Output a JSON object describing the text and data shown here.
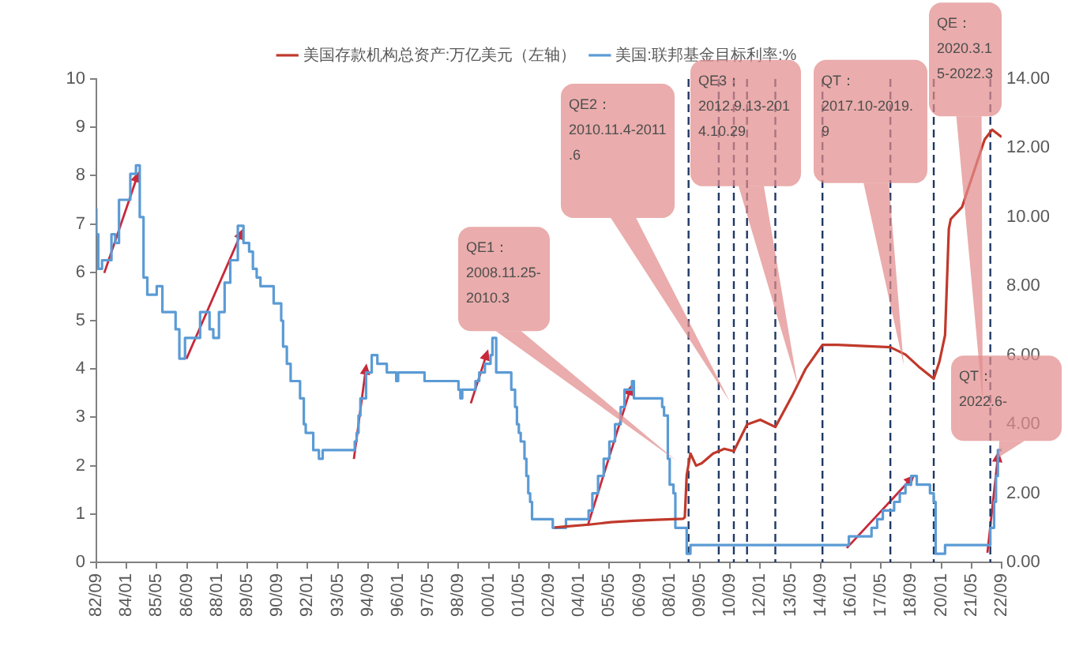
{
  "chart_data": {
    "type": "line",
    "xlim": [
      "1982-09",
      "2022-09"
    ],
    "xticks": [
      {
        "value": "1982-09",
        "label": "82/09"
      },
      {
        "value": "1984-01",
        "label": "84/01"
      },
      {
        "value": "1985-05",
        "label": "85/05"
      },
      {
        "value": "1986-09",
        "label": "86/09"
      },
      {
        "value": "1988-01",
        "label": "88/01"
      },
      {
        "value": "1989-05",
        "label": "89/05"
      },
      {
        "value": "1990-09",
        "label": "90/09"
      },
      {
        "value": "1992-01",
        "label": "92/01"
      },
      {
        "value": "1993-05",
        "label": "93/05"
      },
      {
        "value": "1994-09",
        "label": "94/09"
      },
      {
        "value": "1996-01",
        "label": "96/01"
      },
      {
        "value": "1997-05",
        "label": "97/05"
      },
      {
        "value": "1998-09",
        "label": "98/09"
      },
      {
        "value": "2000-01",
        "label": "00/01"
      },
      {
        "value": "2001-05",
        "label": "01/05"
      },
      {
        "value": "2002-09",
        "label": "02/09"
      },
      {
        "value": "2004-01",
        "label": "04/01"
      },
      {
        "value": "2005-05",
        "label": "05/05"
      },
      {
        "value": "2006-09",
        "label": "06/09"
      },
      {
        "value": "2008-01",
        "label": "08/01"
      },
      {
        "value": "2009-05",
        "label": "09/05"
      },
      {
        "value": "2010-09",
        "label": "10/09"
      },
      {
        "value": "2012-01",
        "label": "12/01"
      },
      {
        "value": "2013-05",
        "label": "13/05"
      },
      {
        "value": "2014-09",
        "label": "14/09"
      },
      {
        "value": "2016-01",
        "label": "16/01"
      },
      {
        "value": "2017-05",
        "label": "17/05"
      },
      {
        "value": "2018-09",
        "label": "18/09"
      },
      {
        "value": "2020-01",
        "label": "20/01"
      },
      {
        "value": "2021-05",
        "label": "21/05"
      },
      {
        "value": "2022-09",
        "label": "22/09"
      }
    ],
    "ylim": [
      0,
      10
    ],
    "yticks": [
      0,
      1,
      2,
      3,
      4,
      5,
      6,
      7,
      8,
      9,
      10
    ],
    "y2lim": [
      0,
      14
    ],
    "y2ticks": [
      {
        "value": 0,
        "label": "0.00"
      },
      {
        "value": 2,
        "label": "2.00"
      },
      {
        "value": 4,
        "label": "4.00"
      },
      {
        "value": 6,
        "label": "6.00"
      },
      {
        "value": 8,
        "label": "8.00"
      },
      {
        "value": 10,
        "label": "10.00"
      },
      {
        "value": 12,
        "label": "12.00"
      },
      {
        "value": 14,
        "label": "14.00"
      }
    ],
    "grid": false,
    "legend": "top",
    "marker": "none",
    "line_style": "solid",
    "series": [
      {
        "name": "美国存款机构总资产:万亿美元（左轴）",
        "color": "#c0392b",
        "x": [
          "2002-12",
          "2003-06",
          "2004-06",
          "2005-06",
          "2006-06",
          "2007-06",
          "2008-08",
          "2008-09",
          "2008-10",
          "2008-12",
          "2009-03",
          "2009-06",
          "2009-12",
          "2010-06",
          "2010-11",
          "2011-06",
          "2012-01",
          "2012-09",
          "2013-06",
          "2014-01",
          "2014-10",
          "2015-06",
          "2017-10",
          "2018-06",
          "2019-01",
          "2019-09",
          "2019-12",
          "2020-03",
          "2020-05",
          "2020-06",
          "2020-12",
          "2021-06",
          "2021-12",
          "2022-04",
          "2022-09"
        ],
        "values": [
          0.72,
          0.74,
          0.78,
          0.83,
          0.86,
          0.88,
          0.9,
          0.93,
          1.8,
          2.25,
          2.0,
          2.05,
          2.25,
          2.35,
          2.3,
          2.85,
          2.95,
          2.8,
          3.45,
          4.0,
          4.5,
          4.5,
          4.45,
          4.3,
          4.05,
          3.8,
          4.15,
          4.7,
          6.9,
          7.1,
          7.35,
          8.05,
          8.75,
          8.95,
          8.8
        ]
      },
      {
        "name": "美国:联邦基金目标利率:%",
        "type": "step",
        "axis": "y2",
        "color": "#5b9bd5",
        "x": [
          "1982-09",
          "1982-10",
          "1982-12",
          "1983-05",
          "1983-07",
          "1983-09",
          "1984-03",
          "1984-06",
          "1984-08",
          "1984-10",
          "1984-12",
          "1985-05",
          "1985-08",
          "1986-03",
          "1986-05",
          "1986-08",
          "1987-04",
          "1987-09",
          "1987-11",
          "1988-02",
          "1988-05",
          "1988-08",
          "1988-12",
          "1989-03",
          "1989-06",
          "1989-08",
          "1989-10",
          "1989-12",
          "1990-07",
          "1990-11",
          "1990-12",
          "1991-02",
          "1991-04",
          "1991-09",
          "1991-11",
          "1991-12",
          "1992-04",
          "1992-07",
          "1992-09",
          "1994-02",
          "1994-03",
          "1994-04",
          "1994-05",
          "1994-08",
          "1994-11",
          "1995-02",
          "1995-07",
          "1995-12",
          "1996-01",
          "1997-03",
          "1998-09",
          "1998-10",
          "1998-11",
          "1999-06",
          "1999-08",
          "1999-11",
          "2000-02",
          "2000-03",
          "2000-05",
          "2001-01",
          "2001-03",
          "2001-04",
          "2001-05",
          "2001-06",
          "2001-08",
          "2001-09",
          "2001-10",
          "2001-11",
          "2001-12",
          "2002-11",
          "2003-06",
          "2004-06",
          "2004-08",
          "2004-11",
          "2005-02",
          "2005-05",
          "2005-08",
          "2005-11",
          "2006-01",
          "2006-05",
          "2006-06",
          "2007-09",
          "2007-10",
          "2007-12",
          "2008-01",
          "2008-03",
          "2008-04",
          "2008-10",
          "2008-12",
          "2015-12",
          "2016-12",
          "2017-03",
          "2017-06",
          "2017-12",
          "2018-03",
          "2018-06",
          "2018-09",
          "2018-12",
          "2019-07",
          "2019-09",
          "2019-10",
          "2020-03",
          "2022-03",
          "2022-05",
          "2022-06",
          "2022-07",
          "2022-09"
        ],
        "values": [
          10.25,
          9.5,
          8.5,
          8.75,
          9.5,
          9.25,
          10.5,
          11.25,
          11.5,
          10.0,
          8.25,
          7.75,
          8.0,
          7.25,
          6.75,
          5.9,
          6.5,
          7.25,
          6.75,
          6.5,
          7.25,
          8.1,
          8.75,
          9.75,
          9.25,
          9.0,
          8.5,
          8.25,
          8.0,
          7.5,
          7.0,
          6.25,
          5.75,
          5.25,
          4.75,
          4.0,
          3.75,
          3.25,
          3.0,
          3.25,
          3.5,
          3.75,
          4.25,
          4.75,
          5.5,
          6.0,
          5.75,
          5.5,
          5.25,
          5.5,
          5.25,
          5.0,
          4.75,
          5.0,
          5.25,
          5.5,
          5.75,
          6.0,
          6.5,
          5.5,
          5.0,
          4.5,
          4.0,
          3.75,
          3.5,
          3.0,
          2.5,
          2.0,
          1.75,
          1.25,
          1.0,
          1.25,
          1.5,
          2.0,
          2.5,
          3.0,
          3.5,
          4.0,
          4.5,
          5.0,
          5.25,
          4.75,
          4.5,
          4.25,
          3.0,
          2.25,
          2.0,
          1.0,
          0.25,
          0.5,
          0.75,
          1.0,
          1.25,
          1.5,
          1.75,
          2.0,
          2.25,
          2.5,
          2.25,
          2.0,
          1.75,
          0.25,
          0.5,
          1.0,
          1.75,
          2.5,
          3.25
        ]
      }
    ],
    "ref_lines": [
      {
        "axis": "x",
        "value": "2008-11",
        "color": "#1f3864",
        "line_style": "dashed"
      },
      {
        "axis": "x",
        "value": "2010-03",
        "color": "#1f3864",
        "line_style": "dashed"
      },
      {
        "axis": "x",
        "value": "2010-11",
        "color": "#1f3864",
        "line_style": "dashed"
      },
      {
        "axis": "x",
        "value": "2011-06",
        "color": "#1f3864",
        "line_style": "dashed"
      },
      {
        "axis": "x",
        "value": "2012-09",
        "color": "#1f3864",
        "line_style": "dashed"
      },
      {
        "axis": "x",
        "value": "2014-10",
        "color": "#1f3864",
        "line_style": "dashed"
      },
      {
        "axis": "x",
        "value": "2017-10",
        "color": "#1f3864",
        "line_style": "dashed"
      },
      {
        "axis": "x",
        "value": "2019-09",
        "color": "#1f3864",
        "line_style": "dashed"
      },
      {
        "axis": "x",
        "value": "2022-03",
        "color": "#1f3864",
        "line_style": "dashed"
      }
    ],
    "annotations": [
      "QE1：2008.11.25-2010.3",
      "QE2：2010.11.4-2011.6",
      "QE3：2012.9.13-2014.10.29",
      "QT：2017.10-2019.9",
      "QE：2020.3.15-2022.3",
      "QT：2022.6-"
    ]
  }
}
